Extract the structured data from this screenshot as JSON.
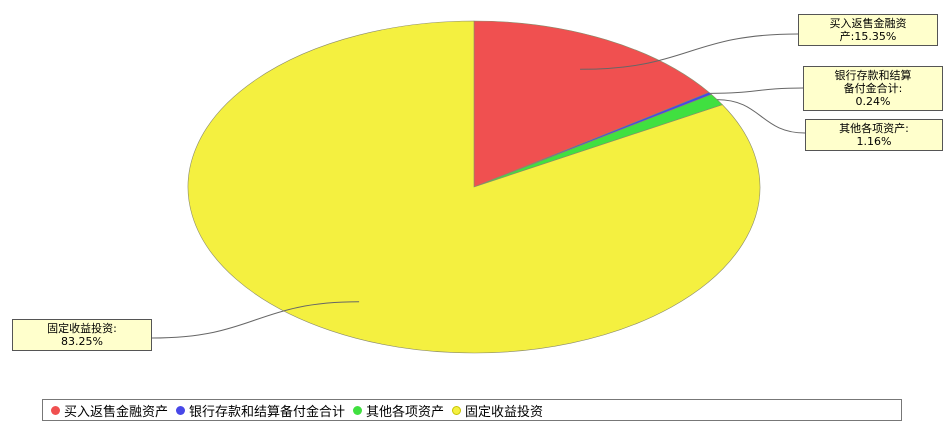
{
  "chart_data": {
    "type": "pie",
    "categories": [
      "买入返售金融资产",
      "银行存款和结算备付金合计",
      "其他各项资产",
      "固定收益投资"
    ],
    "values": [
      15.35,
      0.24,
      1.16,
      83.25
    ],
    "unit": "%",
    "colors": [
      "#f05050",
      "#4848e8",
      "#40e040",
      "#f4f040"
    ],
    "legend_position": "bottom",
    "labels": [
      {
        "lines": [
          "买入返售金融资",
          "产:15.35%"
        ]
      },
      {
        "lines": [
          "银行存款和结算",
          "备付金合计:",
          "0.24%"
        ]
      },
      {
        "lines": [
          "其他各项资产:",
          "1.16%"
        ]
      },
      {
        "lines": [
          "固定收益投资:",
          "83.25%"
        ]
      }
    ]
  }
}
